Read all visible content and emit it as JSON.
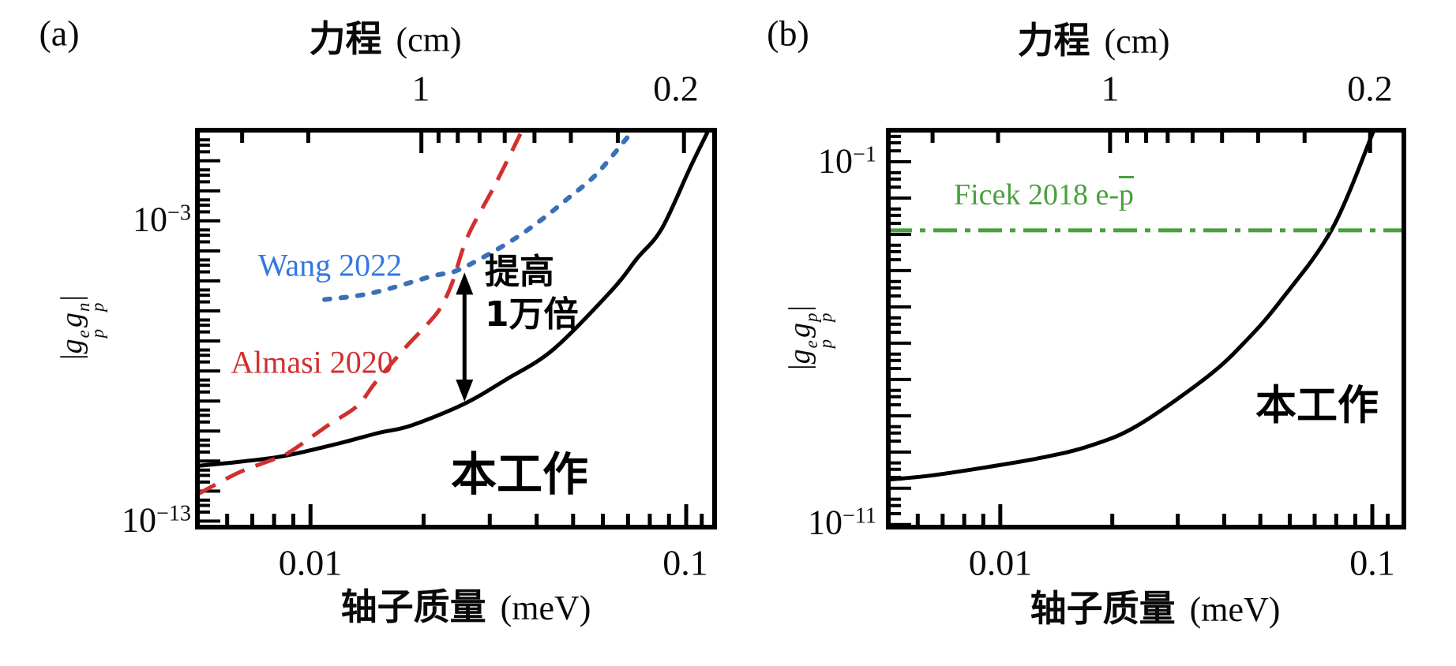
{
  "panels": [
    {
      "tag": "(a)",
      "top_axis_title": "力程",
      "top_axis_unit": "(cm)",
      "top_tick_labels": [
        "1",
        "0.2"
      ],
      "x_axis_title": "轴子质量",
      "x_axis_unit": "(meV)",
      "x_tick_labels": [
        "0.01",
        "0.1"
      ],
      "y_power_top": {
        "base": "10",
        "exp": "−3"
      },
      "y_power_bottom": {
        "base": "10",
        "exp": "−13"
      },
      "y_label": {
        "open": "|",
        "g1": "g",
        "g1_sup": "e",
        "g1_sub": "p",
        "g2": "g",
        "g2_sup": "n",
        "g2_sub": "p",
        "close": "|"
      },
      "series_labels": {
        "work": "本工作",
        "almasi": "Almasi 2020",
        "wang": "Wang 2022"
      },
      "annotation": {
        "line1": "提高",
        "line2": "1万倍"
      }
    },
    {
      "tag": "(b)",
      "top_axis_title": "力程",
      "top_axis_unit": "(cm)",
      "top_tick_labels": [
        "1",
        "0.2"
      ],
      "x_axis_title": "轴子质量",
      "x_axis_unit": "(meV)",
      "x_tick_labels": [
        "0.01",
        "0.1"
      ],
      "y_power_top": {
        "base": "10",
        "exp": "−1"
      },
      "y_power_bottom": {
        "base": "10",
        "exp": "−11"
      },
      "y_label": {
        "open": "|",
        "g1": "g",
        "g1_sup": "e",
        "g1_sub": "p",
        "g2": "g",
        "g2_sup": "p",
        "g2_sub": "p",
        "close": "|"
      },
      "series_labels": {
        "work": "本工作",
        "ficek_prefix": "Ficek 2018 e-",
        "ficek_bar": "p"
      }
    }
  ],
  "colors": {
    "black": "#000000",
    "red": "#d22f2f",
    "blue_curve": "#3a70b8",
    "blue_text": "#3377e0",
    "green": "#4aa03e"
  },
  "chart_data": [
    {
      "type": "line",
      "panel": "a",
      "title": "轴子单极-偶极耦合限制 (a)",
      "xlabel": "轴子质量 (meV)",
      "top_axis_label": "力程 (cm)",
      "ylabel": "|g_p^e g_p^n|",
      "xscale": "log",
      "yscale": "log",
      "xlim": [
        0.005,
        0.119
      ],
      "ylim_exp": [
        -13.2,
        0.02
      ],
      "x_ticks": {
        "major": [
          0.01,
          0.1
        ],
        "minor": [
          0.006,
          0.007,
          0.008,
          0.009,
          0.02,
          0.03,
          0.04,
          0.05,
          0.06,
          0.07,
          0.08,
          0.09,
          0.11
        ]
      },
      "top_ticks": {
        "unit": "cm",
        "mass_mev_times_lambda_cm": 0.01973,
        "major": [
          1,
          0.2
        ],
        "minor": [
          3,
          2,
          0.9,
          0.8,
          0.7,
          0.6,
          0.5,
          0.4,
          0.3
        ]
      },
      "y_ticks": {
        "major_every_decade": 1,
        "minor_offsets": [
          0.301,
          0.477,
          0.699
        ]
      },
      "series": [
        {
          "name": "本工作",
          "style": "solid",
          "color": "#000000",
          "points_m_exp": [
            [
              0.005,
              -11.16
            ],
            [
              0.0065,
              -11.02
            ],
            [
              0.0086,
              -10.82
            ],
            [
              0.012,
              -10.4
            ],
            [
              0.0152,
              -10.06
            ],
            [
              0.0185,
              -9.82
            ],
            [
              0.0257,
              -9.09
            ],
            [
              0.033,
              -8.3
            ],
            [
              0.0443,
              -7.28
            ],
            [
              0.0637,
              -5.28
            ],
            [
              0.074,
              -4.25
            ],
            [
              0.0861,
              -3.26
            ],
            [
              0.1025,
              -1.22
            ],
            [
              0.114,
              -0.04
            ]
          ]
        },
        {
          "name": "Almasi 2020",
          "style": "dashed",
          "color": "#d22f2f",
          "points_m_exp": [
            [
              0.005,
              -12.11
            ],
            [
              0.0064,
              -11.4
            ],
            [
              0.0077,
              -11.01
            ],
            [
              0.0087,
              -10.74
            ],
            [
              0.0111,
              -9.82
            ],
            [
              0.0133,
              -9.17
            ],
            [
              0.0149,
              -8.38
            ],
            [
              0.0178,
              -7.25
            ],
            [
              0.0204,
              -6.46
            ],
            [
              0.0222,
              -5.89
            ],
            [
              0.0239,
              -5.02
            ],
            [
              0.0262,
              -3.52
            ],
            [
              0.031,
              -1.8
            ],
            [
              0.0362,
              -0.1
            ]
          ]
        },
        {
          "name": "Wang 2022",
          "style": "dotted",
          "color": "#3a70b8",
          "points_m_exp": [
            [
              0.0109,
              -5.62
            ],
            [
              0.0145,
              -5.41
            ],
            [
              0.0211,
              -4.84
            ],
            [
              0.0248,
              -4.63
            ],
            [
              0.0331,
              -3.78
            ],
            [
              0.0408,
              -3.0
            ],
            [
              0.0489,
              -2.21
            ],
            [
              0.0578,
              -1.43
            ],
            [
              0.0709,
              -0.11
            ]
          ]
        }
      ],
      "arrow": {
        "meaning": "提高1万倍 (10^4 improvement)",
        "m": 0.0257,
        "exp_top": -4.72,
        "exp_bottom": -9.02
      }
    },
    {
      "type": "line",
      "panel": "b",
      "title": "轴子单极-偶极耦合限制 (b)",
      "xlabel": "轴子质量 (meV)",
      "top_axis_label": "力程 (cm)",
      "ylabel": "|g_p^e g_p^p|",
      "xscale": "log",
      "yscale": "log",
      "xlim": [
        0.005,
        0.1216
      ],
      "ylim_exp": [
        -11.07,
        -0.13
      ],
      "x_ticks": {
        "major": [
          0.01,
          0.1
        ],
        "minor": [
          0.006,
          0.007,
          0.008,
          0.009,
          0.02,
          0.03,
          0.04,
          0.05,
          0.06,
          0.07,
          0.08,
          0.09,
          0.11
        ]
      },
      "top_ticks": {
        "unit": "cm",
        "mass_mev_times_lambda_cm": 0.01973,
        "major": [
          1,
          0.2
        ],
        "minor": [
          3,
          2,
          0.9,
          0.8,
          0.7,
          0.6,
          0.5,
          0.4,
          0.3
        ]
      },
      "y_ticks": {
        "major_every_decade": 1,
        "minor_offsets": [
          0.301,
          0.477,
          0.699
        ]
      },
      "series": [
        {
          "name": "本工作",
          "style": "solid",
          "color": "#000000",
          "points_m_exp": [
            [
              0.005,
              -9.76
            ],
            [
              0.0065,
              -9.65
            ],
            [
              0.0093,
              -9.41
            ],
            [
              0.013,
              -9.15
            ],
            [
              0.0174,
              -8.83
            ],
            [
              0.0233,
              -8.28
            ],
            [
              0.0362,
              -6.91
            ],
            [
              0.0462,
              -5.89
            ],
            [
              0.057,
              -4.8
            ],
            [
              0.078,
              -2.85
            ],
            [
              0.101,
              -0.13
            ]
          ]
        },
        {
          "name": "Ficek 2018 e-p̄",
          "style": "dashdot",
          "color": "#4aa03e",
          "horizontal_exp": -2.89,
          "x_from": 0.005,
          "x_to": 0.1216
        }
      ]
    }
  ]
}
